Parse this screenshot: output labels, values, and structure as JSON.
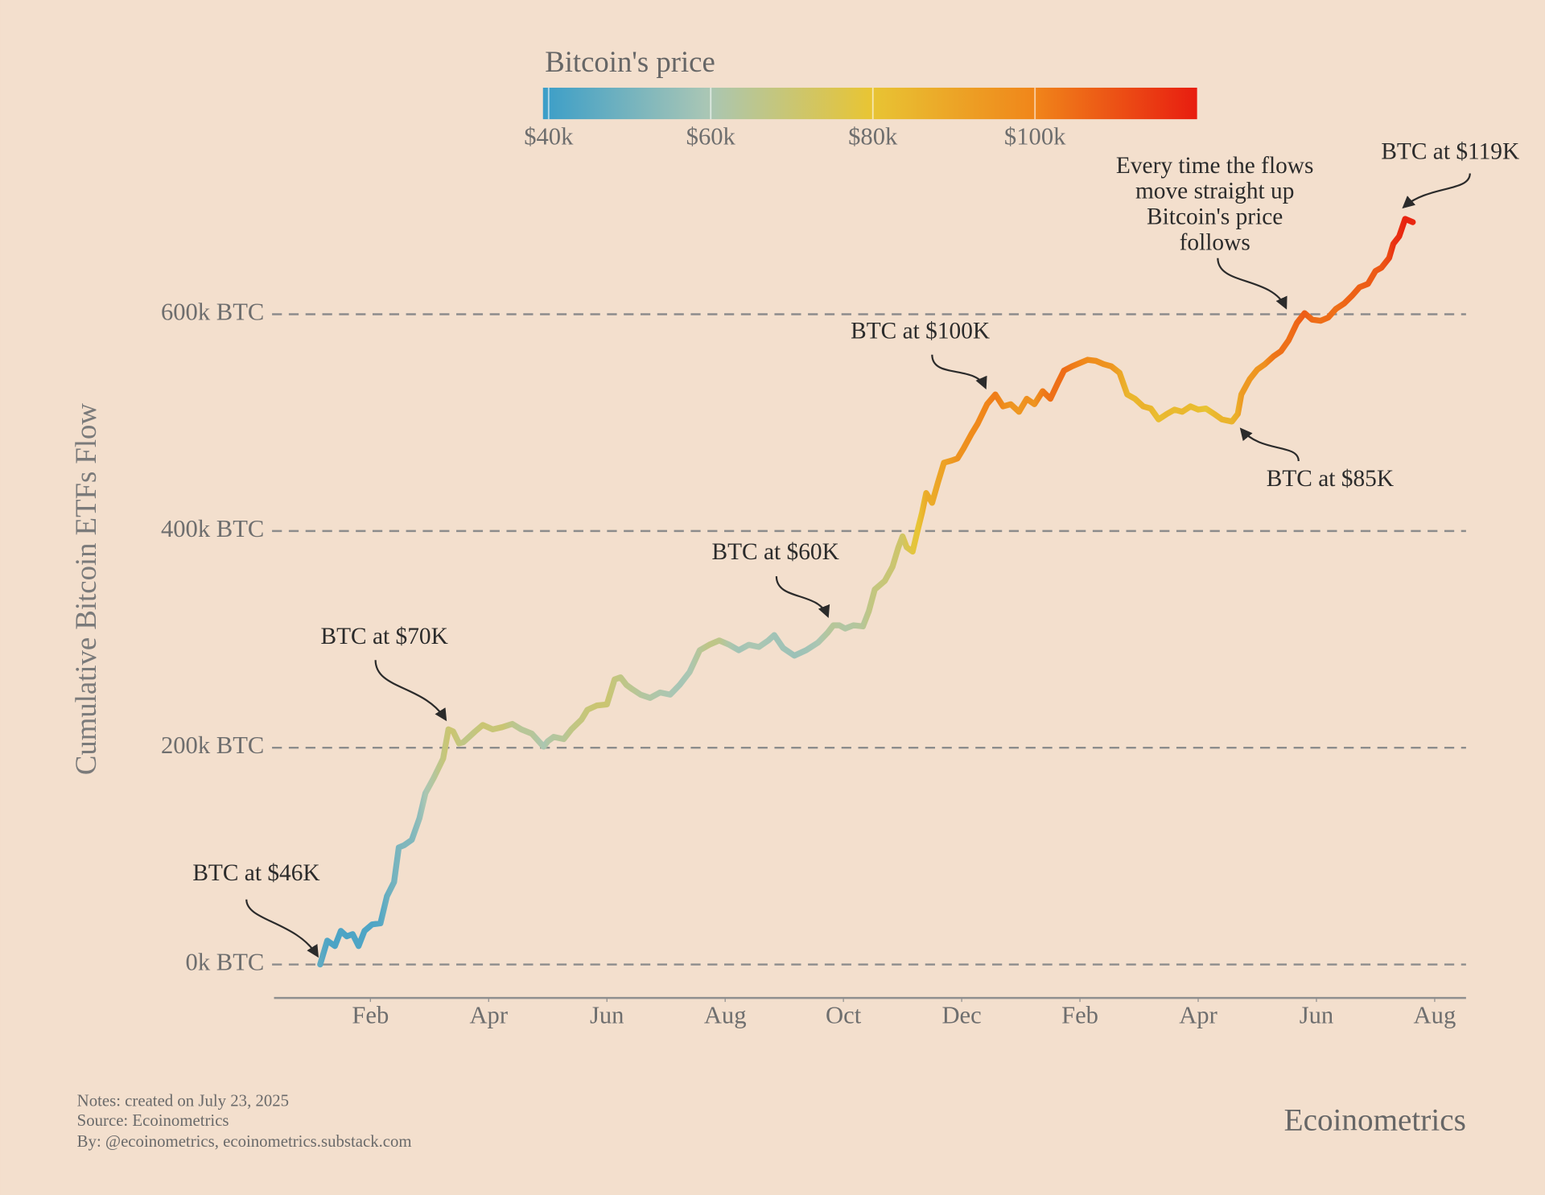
{
  "chart_data": {
    "type": "line",
    "y_label": "Cumulative Bitcoin ETFs Flow",
    "colorbar": {
      "title": "Bitcoin's price",
      "lim": [
        39300,
        120000
      ],
      "colors": [
        "#3b9ec8",
        "#a9c6b5",
        "#e8c534",
        "#f0861a",
        "#e81d10"
      ],
      "ticks": [
        {
          "value": 40000,
          "label": "$40k"
        },
        {
          "value": 60000,
          "label": "$60k"
        },
        {
          "value": 80000,
          "label": "$80k"
        },
        {
          "value": 100000,
          "label": "$100k"
        }
      ]
    },
    "xlim": [
      -0.63,
      19.53
    ],
    "xticks": [
      {
        "value": 1,
        "label": "Feb"
      },
      {
        "value": 3,
        "label": "Apr"
      },
      {
        "value": 5,
        "label": "Jun"
      },
      {
        "value": 7,
        "label": "Aug"
      },
      {
        "value": 9,
        "label": "Oct"
      },
      {
        "value": 11,
        "label": "Dec"
      },
      {
        "value": 13,
        "label": "Feb"
      },
      {
        "value": 15,
        "label": "Apr"
      },
      {
        "value": 17,
        "label": "Jun"
      },
      {
        "value": 19,
        "label": "Aug"
      }
    ],
    "ylim": [
      -30900,
      690000
    ],
    "yticks": [
      {
        "value": 0,
        "label": "0k BTC"
      },
      {
        "value": 200000,
        "label": "200k BTC"
      },
      {
        "value": 400000,
        "label": "400k BTC"
      },
      {
        "value": 600000,
        "label": "600k BTC"
      }
    ],
    "grid": true,
    "x": [
      0.15,
      0.27,
      0.4,
      0.5,
      0.6,
      0.7,
      0.8,
      0.9,
      1.03,
      1.17,
      1.28,
      1.4,
      1.48,
      1.57,
      1.7,
      1.83,
      1.93,
      2.07,
      2.15,
      2.23,
      2.32,
      2.4,
      2.5,
      2.57,
      2.67,
      2.77,
      2.9,
      3.07,
      3.23,
      3.4,
      3.55,
      3.73,
      3.93,
      4.0,
      4.1,
      4.27,
      4.4,
      4.57,
      4.67,
      4.83,
      5.0,
      5.13,
      5.23,
      5.33,
      5.43,
      5.57,
      5.73,
      5.9,
      6.07,
      6.23,
      6.4,
      6.57,
      6.73,
      6.9,
      7.07,
      7.23,
      7.4,
      7.57,
      7.73,
      7.83,
      7.98,
      8.17,
      8.37,
      8.57,
      8.73,
      8.83,
      8.93,
      9.03,
      9.17,
      9.33,
      9.43,
      9.53,
      9.7,
      9.83,
      9.93,
      10.0,
      10.07,
      10.17,
      10.27,
      10.33,
      10.4,
      10.5,
      10.6,
      10.7,
      10.83,
      10.93,
      11.03,
      11.17,
      11.27,
      11.43,
      11.57,
      11.7,
      11.83,
      11.97,
      12.1,
      12.23,
      12.37,
      12.5,
      12.63,
      12.73,
      12.87,
      13.0,
      13.13,
      13.27,
      13.4,
      13.53,
      13.67,
      13.8,
      13.93,
      14.07,
      14.2,
      14.33,
      14.47,
      14.6,
      14.73,
      14.87,
      15.0,
      15.13,
      15.27,
      15.4,
      15.57,
      15.67,
      15.73,
      15.87,
      16.0,
      16.13,
      16.27,
      16.4,
      16.53,
      16.67,
      16.8,
      16.93,
      17.07,
      17.2,
      17.33,
      17.47,
      17.6,
      17.73,
      17.87,
      18.0,
      18.1,
      18.23,
      18.3,
      18.4,
      18.5,
      18.63
    ],
    "values": [
      0,
      22000,
      17000,
      31000,
      26000,
      28000,
      17000,
      31000,
      37000,
      38000,
      63000,
      76000,
      108000,
      110000,
      115000,
      135000,
      158000,
      172000,
      181000,
      190000,
      217000,
      215000,
      204000,
      205000,
      210000,
      215000,
      221000,
      217000,
      219000,
      222000,
      217000,
      213000,
      201000,
      206000,
      210000,
      208000,
      217000,
      226000,
      235000,
      239000,
      240000,
      263000,
      265000,
      258000,
      254000,
      249000,
      246000,
      251000,
      249000,
      258000,
      270000,
      290000,
      295000,
      299000,
      295000,
      290000,
      295000,
      293000,
      299000,
      304000,
      292000,
      285000,
      290000,
      297000,
      306000,
      313000,
      313000,
      310000,
      313000,
      312000,
      326000,
      346000,
      354000,
      367000,
      385000,
      395000,
      385000,
      381000,
      404000,
      417000,
      435000,
      426000,
      445000,
      463000,
      465000,
      467000,
      476000,
      490000,
      499000,
      517000,
      526000,
      515000,
      517000,
      510000,
      522000,
      517000,
      529000,
      522000,
      537000,
      548000,
      552000,
      555000,
      558000,
      557000,
      554000,
      552000,
      546000,
      526000,
      522000,
      515000,
      513000,
      503000,
      508000,
      512000,
      510000,
      515000,
      512000,
      513000,
      508000,
      503000,
      501000,
      508000,
      526000,
      540000,
      549000,
      554000,
      561000,
      566000,
      576000,
      592000,
      601000,
      595000,
      594000,
      597000,
      605000,
      610000,
      617000,
      625000,
      628000,
      640000,
      643000,
      652000,
      665000,
      672000,
      688000,
      685000
    ],
    "color_values": [
      46000,
      43000,
      42000,
      43000,
      42000,
      43000,
      43000,
      43000,
      43000,
      44000,
      48000,
      50000,
      51000,
      52000,
      52000,
      55000,
      60000,
      63000,
      66000,
      68000,
      70000,
      70000,
      68000,
      67000,
      67000,
      68000,
      70000,
      69000,
      70000,
      66000,
      64000,
      64000,
      60000,
      62000,
      63000,
      64000,
      67000,
      68000,
      69000,
      70000,
      70000,
      68000,
      67000,
      66000,
      65000,
      63000,
      62000,
      61000,
      60000,
      59000,
      60000,
      64000,
      67000,
      66000,
      61000,
      58000,
      60000,
      60000,
      59000,
      58000,
      58000,
      57000,
      58000,
      60000,
      63000,
      64000,
      63000,
      62000,
      63000,
      64000,
      67000,
      68000,
      69000,
      70000,
      71000,
      72000,
      75000,
      78000,
      80000,
      84000,
      88000,
      88000,
      90000,
      91000,
      93000,
      96000,
      96000,
      98000,
      99000,
      100000,
      102000,
      98000,
      95000,
      94000,
      97000,
      95000,
      102000,
      104000,
      104000,
      105000,
      102000,
      100000,
      98000,
      97000,
      96000,
      95000,
      90000,
      85000,
      84000,
      86000,
      84000,
      82000,
      84000,
      83000,
      84000,
      83000,
      82000,
      80000,
      84000,
      85000,
      85000,
      88000,
      93000,
      94000,
      95000,
      97000,
      103000,
      104000,
      104000,
      106000,
      108000,
      105000,
      104000,
      105000,
      104000,
      106000,
      107000,
      107000,
      108000,
      108000,
      109000,
      112000,
      116000,
      117000,
      119000,
      118000
    ],
    "line_width": 6,
    "annotations": [
      "BTC at $46K",
      "BTC at $70K",
      "BTC at $60K",
      "BTC at $100K",
      "BTC at $85K",
      [
        "Every time the flows",
        "move straight up",
        "Bitcoin's price",
        "follows"
      ],
      "BTC at $119K"
    ],
    "notes": [
      "Notes: created on July 23, 2025",
      "Source: Ecoinometrics",
      "By: @ecoinometrics, ecoinometrics.substack.com"
    ],
    "credit": "Ecoinometrics"
  }
}
